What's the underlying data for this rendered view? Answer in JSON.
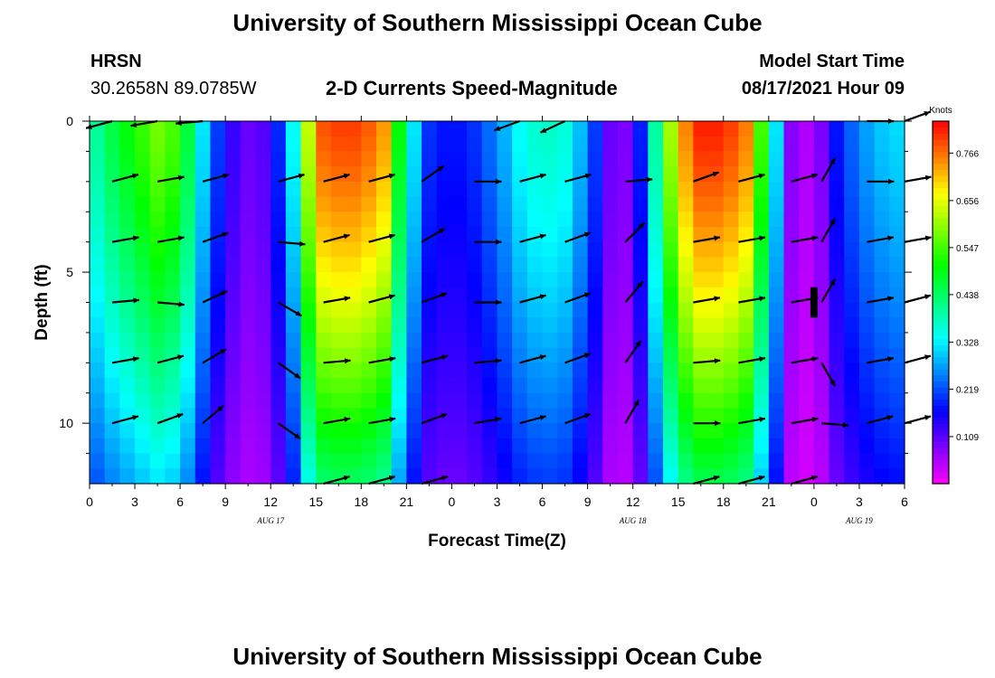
{
  "header": {
    "title": "University of Southern Mississippi Ocean Cube",
    "station": "HRSN",
    "coords": "30.2658N  89.0785W",
    "subtitle": "2-D Currents Speed-Magnitude",
    "model_label": "Model Start Time",
    "model_time": "08/17/2021 Hour 09"
  },
  "footer": {
    "title": "University of Southern Mississippi Ocean Cube"
  },
  "chart_data": {
    "type": "heatmap",
    "title": "2-D Currents Speed-Magnitude",
    "xlabel": "Forecast Time(Z)",
    "ylabel": "Depth (ft)",
    "xlim": [
      0,
      54
    ],
    "ylim": [
      0,
      12
    ],
    "x_ticks": [
      0,
      3,
      6,
      9,
      12,
      15,
      18,
      21,
      24,
      27,
      30,
      33,
      36,
      39,
      42,
      45,
      48,
      51,
      54
    ],
    "x_tick_labels": [
      "0",
      "3",
      "6",
      "9",
      "12",
      "15",
      "18",
      "21",
      "0",
      "3",
      "6",
      "9",
      "12",
      "15",
      "18",
      "21",
      "0",
      "3",
      "6"
    ],
    "y_ticks": [
      0,
      5,
      10
    ],
    "y_tick_labels": [
      "0",
      "5",
      "10"
    ],
    "date_labels": [
      {
        "x": 12,
        "label": "AUG 17"
      },
      {
        "x": 36,
        "label": "AUG 18"
      },
      {
        "x": 51,
        "label": "AUG 19"
      }
    ],
    "colorbar": {
      "unit": "Knots",
      "min": 0.0,
      "max": 0.84,
      "tick_values": [
        0.766,
        0.656,
        0.547,
        0.438,
        0.328,
        0.219,
        0.109
      ],
      "tick_labels": [
        "0.766",
        "0.656",
        "0.547",
        "0.438",
        "0.328",
        "0.219",
        "0.109"
      ]
    },
    "speed_profile": {
      "times": [
        0,
        1.5,
        3,
        4.5,
        6,
        7.5,
        9,
        10.5,
        12,
        13.5,
        15,
        16.5,
        18,
        19.5,
        21,
        22.5,
        24,
        25.5,
        27,
        28.5,
        30,
        31.5,
        33,
        34.5,
        36,
        37.5,
        39,
        40.5,
        42,
        43.5,
        45,
        46.5,
        48,
        49.5,
        51,
        52.5,
        54
      ],
      "surface_knots": [
        0.38,
        0.46,
        0.52,
        0.58,
        0.54,
        0.32,
        0.15,
        0.1,
        0.12,
        0.34,
        0.78,
        0.8,
        0.8,
        0.74,
        0.38,
        0.2,
        0.17,
        0.2,
        0.26,
        0.34,
        0.38,
        0.36,
        0.26,
        0.1,
        0.08,
        0.4,
        0.72,
        0.82,
        0.82,
        0.76,
        0.44,
        0.08,
        0.04,
        0.18,
        0.26,
        0.3,
        0.32
      ],
      "depth_factor_at_bottom": 0.55
    },
    "vector_rows_depth_ft": [
      0,
      2,
      4,
      6,
      8,
      10,
      12
    ],
    "vectors": [
      {
        "t": 1.5,
        "dirs": [
          195,
          15,
          10,
          5,
          10,
          15,
          null
        ]
      },
      {
        "t": 4.5,
        "dirs": [
          190,
          10,
          10,
          -5,
          15,
          20,
          null
        ]
      },
      {
        "t": 7.5,
        "dirs": [
          185,
          15,
          20,
          25,
          30,
          40,
          null
        ]
      },
      {
        "t": 12.5,
        "dirs": [
          null,
          15,
          -5,
          -30,
          -35,
          -35,
          null
        ]
      },
      {
        "t": 15.5,
        "dirs": [
          null,
          15,
          15,
          10,
          5,
          10,
          15
        ]
      },
      {
        "t": 18.5,
        "dirs": [
          null,
          15,
          15,
          15,
          10,
          10,
          15
        ]
      },
      {
        "t": 22,
        "dirs": [
          null,
          35,
          30,
          20,
          15,
          20,
          15
        ]
      },
      {
        "t": 25.5,
        "dirs": [
          null,
          0,
          0,
          0,
          5,
          10,
          null
        ]
      },
      {
        "t": 28.5,
        "dirs": [
          200,
          15,
          15,
          15,
          15,
          15,
          null
        ]
      },
      {
        "t": 31.5,
        "dirs": [
          205,
          15,
          20,
          20,
          20,
          20,
          null
        ]
      },
      {
        "t": 35.5,
        "dirs": [
          null,
          5,
          45,
          50,
          55,
          60,
          null
        ]
      },
      {
        "t": 40,
        "dirs": [
          null,
          20,
          10,
          10,
          5,
          0,
          15
        ]
      },
      {
        "t": 43,
        "dirs": [
          null,
          15,
          10,
          10,
          10,
          10,
          15
        ]
      },
      {
        "t": 46.5,
        "dirs": [
          null,
          15,
          10,
          10,
          10,
          10,
          15
        ]
      },
      {
        "t": 48.5,
        "dirs": [
          null,
          60,
          60,
          60,
          -60,
          -5,
          null
        ]
      },
      {
        "t": 51.5,
        "dirs": [
          0,
          0,
          10,
          10,
          10,
          15,
          null
        ]
      },
      {
        "t": 54,
        "dirs": [
          20,
          10,
          10,
          15,
          15,
          15,
          null
        ]
      }
    ],
    "scale_bar": {
      "t": 48,
      "from_depth": 5.5,
      "to_depth": 6.5
    }
  }
}
